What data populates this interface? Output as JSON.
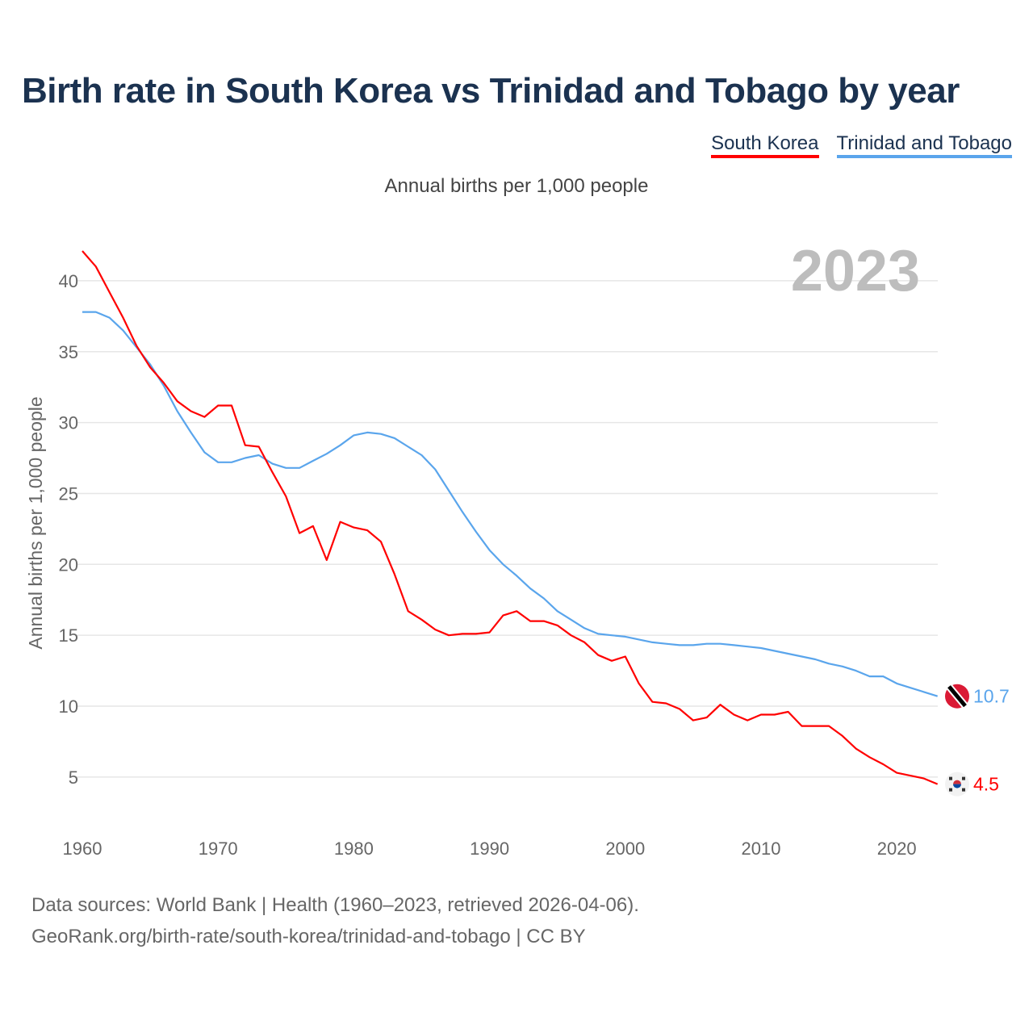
{
  "title": "Birth rate in South Korea vs Trinidad and Tobago by year",
  "subtitle": "Annual births per 1,000 people",
  "source_line1": "Data sources: World Bank | Health (1960–2023, retrieved 2026-04-06).",
  "source_line2": "GeoRank.org/birth-rate/south-korea/trinidad-and-tobago | CC BY",
  "chart_data": {
    "type": "line",
    "title": "Birth rate in South Korea vs Trinidad and Tobago by year",
    "ylabel": "Annual births per 1,000 people",
    "xlabel": "",
    "year_label": "2023",
    "xlim": [
      1960,
      2023
    ],
    "ylim": [
      2,
      43
    ],
    "x_ticks": [
      1960,
      1970,
      1980,
      1990,
      2000,
      2010,
      2020
    ],
    "y_ticks": [
      5,
      10,
      15,
      20,
      25,
      30,
      35,
      40
    ],
    "legend_position": "top-right",
    "x_start": 1960,
    "series": [
      {
        "name": "South Korea",
        "color": "#ff0000",
        "end_label": "4.5",
        "flag": "south-korea",
        "values": [
          42.1,
          41.0,
          39.2,
          37.4,
          35.4,
          33.9,
          32.8,
          31.5,
          30.8,
          30.4,
          31.2,
          31.2,
          28.4,
          28.3,
          26.5,
          24.8,
          22.2,
          22.7,
          20.3,
          23.0,
          22.6,
          22.4,
          21.6,
          19.3,
          16.7,
          16.1,
          15.4,
          15.0,
          15.1,
          15.1,
          15.2,
          16.4,
          16.7,
          16.0,
          16.0,
          15.7,
          15.0,
          14.5,
          13.6,
          13.2,
          13.5,
          11.6,
          10.3,
          10.2,
          9.8,
          9.0,
          9.2,
          10.1,
          9.4,
          9.0,
          9.4,
          9.4,
          9.6,
          8.6,
          8.6,
          8.6,
          7.9,
          7.0,
          6.4,
          5.9,
          5.3,
          5.1,
          4.9,
          4.5
        ]
      },
      {
        "name": "Trinidad and Tobago",
        "color": "#5aa5ec",
        "end_label": "10.7",
        "flag": "trinidad-and-tobago",
        "values": [
          37.8,
          37.8,
          37.4,
          36.5,
          35.3,
          34.1,
          32.6,
          30.8,
          29.3,
          27.9,
          27.2,
          27.2,
          27.5,
          27.7,
          27.1,
          26.8,
          26.8,
          27.3,
          27.8,
          28.4,
          29.1,
          29.3,
          29.2,
          28.9,
          28.3,
          27.7,
          26.7,
          25.2,
          23.7,
          22.3,
          21.0,
          20.0,
          19.2,
          18.3,
          17.6,
          16.7,
          16.1,
          15.5,
          15.1,
          15.0,
          14.9,
          14.7,
          14.5,
          14.4,
          14.3,
          14.3,
          14.4,
          14.4,
          14.3,
          14.2,
          14.1,
          13.9,
          13.7,
          13.5,
          13.3,
          13.0,
          12.8,
          12.5,
          12.1,
          12.1,
          11.6,
          11.3,
          11.0,
          10.7
        ]
      }
    ]
  }
}
